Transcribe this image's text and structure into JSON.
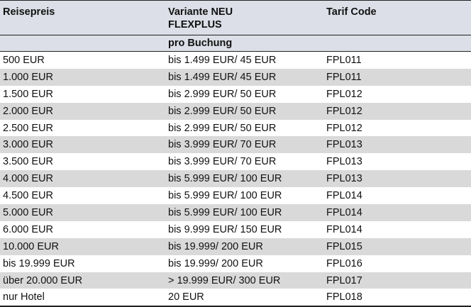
{
  "header": {
    "col1": "Reisepreis",
    "col2_line1": "Variante NEU",
    "col2_line2": "FLEXPLUS",
    "col2_line3": "pro Buchung",
    "col3": "Tarif Code"
  },
  "rows": [
    {
      "price": "500 EUR",
      "variant": "bis 1.499 EUR/ 45 EUR",
      "code": "FPL011"
    },
    {
      "price": "1.000 EUR",
      "variant": "bis 1.499 EUR/ 45 EUR",
      "code": "FPL011"
    },
    {
      "price": "1.500 EUR",
      "variant": "bis 2.999 EUR/ 50 EUR",
      "code": "FPL012"
    },
    {
      "price": "2.000 EUR",
      "variant": "bis 2.999 EUR/ 50 EUR",
      "code": "FPL012"
    },
    {
      "price": "2.500 EUR",
      "variant": "bis 2.999 EUR/ 50 EUR",
      "code": "FPL012"
    },
    {
      "price": "3.000 EUR",
      "variant": "bis 3.999 EUR/ 70 EUR",
      "code": "FPL013"
    },
    {
      "price": "3.500 EUR",
      "variant": "bis 3.999 EUR/ 70 EUR",
      "code": "FPL013"
    },
    {
      "price": "4.000 EUR",
      "variant": "bis 5.999 EUR/ 100 EUR",
      "code": "FPL013"
    },
    {
      "price": "4.500 EUR",
      "variant": "bis 5.999 EUR/ 100 EUR",
      "code": "FPL014"
    },
    {
      "price": "5.000 EUR",
      "variant": "bis 5.999 EUR/ 100 EUR",
      "code": "FPL014"
    },
    {
      "price": "6.000 EUR",
      "variant": "bis 9.999 EUR/ 150 EUR",
      "code": "FPL014"
    },
    {
      "price": "10.000 EUR",
      "variant": "bis 19.999/ 200 EUR",
      "code": "FPL015"
    },
    {
      "price": "bis 19.999 EUR",
      "variant": "bis 19.999/ 200 EUR",
      "code": "FPL016"
    },
    {
      "price": "über 20.000 EUR",
      "variant": "> 19.999 EUR/ 300 EUR",
      "code": "FPL017"
    },
    {
      "price": "nur Hotel",
      "variant": "20 EUR",
      "code": "FPL018"
    }
  ],
  "colors": {
    "header_bg": "#dcdfe7",
    "stripe_bg": "#d9d9d9",
    "border": "#222222"
  }
}
